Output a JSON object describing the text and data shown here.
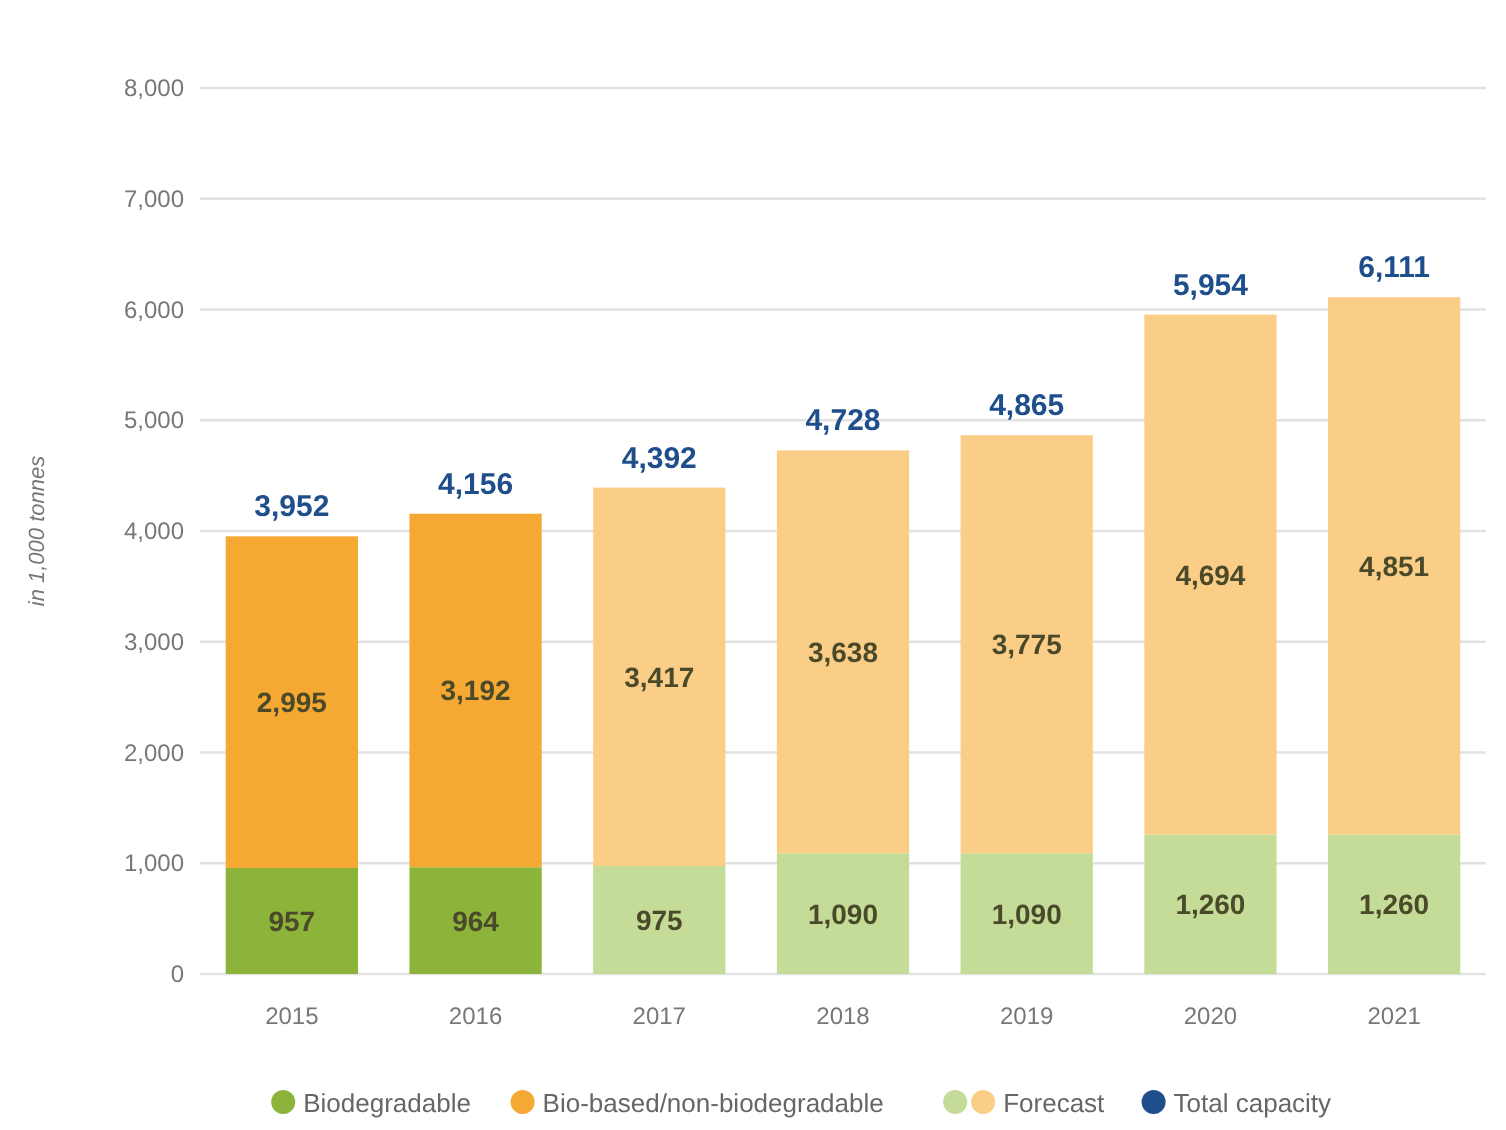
{
  "chart_data": {
    "type": "bar",
    "stacked": true,
    "ylabel": "in 1,000 tonnes",
    "categories": [
      "2015",
      "2016",
      "2017",
      "2018",
      "2019",
      "2020",
      "2021"
    ],
    "series": [
      {
        "name": "Biodegradable",
        "color": "#8cb33a",
        "colors": [
          "#8cb33a",
          "#8cb33a",
          "#c5dc98",
          "#c5dc98",
          "#c5dc98",
          "#c5dc98",
          "#c5dc98"
        ],
        "values": [
          957,
          964,
          975,
          1090,
          1090,
          1260,
          1260
        ],
        "value_labels": [
          "957",
          "964",
          "975",
          "1,090",
          "1,090",
          "1,260",
          "1,260"
        ]
      },
      {
        "name": "Bio-based/non-biodegradable",
        "color": "#f5a832",
        "colors": [
          "#f5a832",
          "#f5a832",
          "#fbce88",
          "#fbce88",
          "#fbce88",
          "#fbce88",
          "#fbce88"
        ],
        "values": [
          2995,
          3192,
          3417,
          3638,
          3775,
          4694,
          4851
        ],
        "value_labels": [
          "2,995",
          "3,192",
          "3,417",
          "3,638",
          "3,775",
          "4,694",
          "4,851"
        ]
      },
      {
        "name": "Forecast",
        "color": "#fbce88",
        "values": [
          null,
          null,
          null,
          null,
          null,
          null,
          null
        ]
      },
      {
        "name": "Total capacity",
        "color": "#1f4e8c",
        "values": [
          null,
          null,
          null,
          null,
          null,
          null,
          null
        ]
      }
    ],
    "totals": [
      "3,952",
      "4,156",
      "4,392",
      "4,728",
      "4,865",
      "5,954",
      "6,111"
    ],
    "ylim": [
      0,
      8000
    ],
    "yticks": [
      0,
      {
        "value": 1000,
        "label": "1,000"
      },
      {
        "value": 2000,
        "label": "2,000"
      },
      {
        "value": 3000,
        "label": "3,000"
      },
      {
        "value": 4000,
        "label": "4,000"
      },
      {
        "value": 5000,
        "label": "5,000"
      },
      {
        "value": 6000,
        "label": "6,000"
      },
      {
        "value": 7000,
        "label": "7,000"
      },
      {
        "value": 8000,
        "label": "8,000"
      }
    ],
    "grid": "y",
    "legend": "bottom"
  }
}
